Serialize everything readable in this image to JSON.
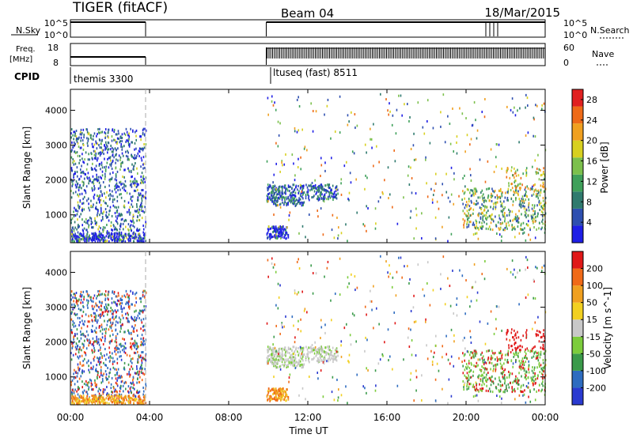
{
  "header": {
    "radar": "TIGER (fitACF)",
    "beam": "Beam 04",
    "date": "18/Mar/2015"
  },
  "strip_labels": {
    "nsky": "N.Sky",
    "nsky_top": "10^5",
    "nsky_bottom": "10^0",
    "nsearch": "N.Search",
    "nsearch_top": "10^5",
    "nsearch_bottom": "10^0",
    "freq_top": "Freq.",
    "freq_unit": "[MHz]",
    "freq_hi": "18",
    "freq_lo": "8",
    "nave": "Nave",
    "nave_hi": "60",
    "nave_lo": "0",
    "cpid": "CPID"
  },
  "cpid_segments": [
    {
      "label": "themis 3300",
      "start_hour": 0.0,
      "end_hour": 3.8
    },
    {
      "label": "ltuseq (fast) 8511",
      "start_hour": 9.9,
      "end_hour": 24.0
    }
  ],
  "chart_data": [
    {
      "type": "heatmap",
      "title": "",
      "xlabel": "",
      "ylabel": "Slant Range [km]",
      "x_range_hours": [
        0,
        24
      ],
      "ylim": [
        200,
        4600
      ],
      "yticks": [
        "1000",
        "2000",
        "3000",
        "4000"
      ],
      "colorbar": {
        "label": "Power [dB]",
        "ticks": [
          "4",
          "8",
          "12",
          "16",
          "20",
          "24",
          "28"
        ],
        "range": [
          0,
          30
        ],
        "colors": [
          "#1e1ee6",
          "#2e4fb0",
          "#2f7a6e",
          "#3fa05a",
          "#7cc04c",
          "#d8d020",
          "#f0a020",
          "#ee6a18",
          "#e02020"
        ]
      },
      "data_gaps_hours": [
        [
          3.8,
          9.9
        ]
      ]
    },
    {
      "type": "heatmap",
      "title": "",
      "xlabel": "Time UT",
      "ylabel": "Slant Range [km]",
      "x_range_hours": [
        0,
        24
      ],
      "ylim": [
        200,
        4600
      ],
      "yticks": [
        "1000",
        "2000",
        "3000",
        "4000"
      ],
      "xticks": [
        "00:00",
        "04:00",
        "08:00",
        "12:00",
        "16:00",
        "20:00",
        "00:00"
      ],
      "colorbar": {
        "label": "Velocity [m s^-1]",
        "ticks": [
          "200",
          "100",
          "50",
          "15",
          "-15",
          "-50",
          "-100",
          "-200"
        ],
        "range": [
          -250,
          250
        ],
        "colors": [
          "#2a3ad0",
          "#2e6cc0",
          "#3a9a4a",
          "#7ccc3c",
          "#c8c8c8",
          "#f2d020",
          "#f0a020",
          "#f06a18",
          "#e01818"
        ]
      },
      "data_gaps_hours": [
        [
          3.8,
          9.9
        ]
      ]
    }
  ]
}
